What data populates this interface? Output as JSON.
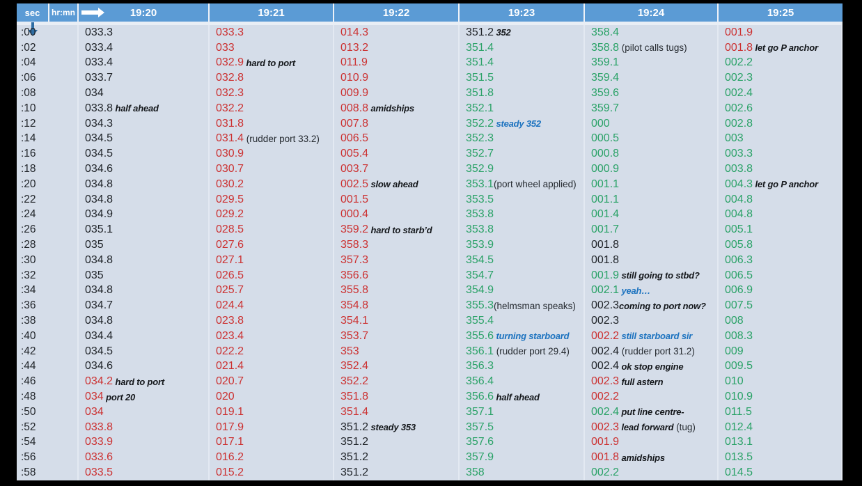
{
  "colors": {
    "header_bg": "#5b9bd5",
    "slide_bg": "#d5dde9",
    "black": "#1f2328",
    "red": "#cc3131",
    "green": "#2aa267",
    "blue": "#1b72bf",
    "arrow": "#2e6da4"
  },
  "header": {
    "sec_label": "sec",
    "hrmn_label": "hr:mn",
    "times": [
      "19:20",
      "19:21",
      "19:22",
      "19:23",
      "19:24",
      "19:25"
    ]
  },
  "rows": [
    ":00",
    ":02",
    ":04",
    ":06",
    ":08",
    ":10",
    ":12",
    ":14",
    ":16",
    ":18",
    ":20",
    ":22",
    ":24",
    ":26",
    ":28",
    ":30",
    ":32",
    ":34",
    ":36",
    ":38",
    ":40",
    ":42",
    ":44",
    ":46",
    ":48",
    ":50",
    ":52",
    ":54",
    ":56",
    ":58"
  ],
  "annotation_styles": {
    "bi": "black bold italic",
    "bl": "blue bold italic",
    "rg": "regular black"
  },
  "columns": [
    {
      "time": "19:20",
      "cells": [
        {
          "v": "033.3",
          "c": "k"
        },
        {
          "v": "033.4",
          "c": "k"
        },
        {
          "v": "033.4",
          "c": "k"
        },
        {
          "v": "033.7",
          "c": "k"
        },
        {
          "v": "034",
          "c": "k"
        },
        {
          "v": "033.8",
          "c": "k",
          "a": [
            {
              "t": " half ahead",
              "s": "bi"
            }
          ]
        },
        {
          "v": "034.3",
          "c": "k"
        },
        {
          "v": "034.5",
          "c": "k"
        },
        {
          "v": "034.5",
          "c": "k"
        },
        {
          "v": "034.6",
          "c": "k"
        },
        {
          "v": "034.8",
          "c": "k"
        },
        {
          "v": "034.8",
          "c": "k"
        },
        {
          "v": "034.9",
          "c": "k"
        },
        {
          "v": "035.1",
          "c": "k"
        },
        {
          "v": "035",
          "c": "k"
        },
        {
          "v": "034.8",
          "c": "k"
        },
        {
          "v": "035",
          "c": "k"
        },
        {
          "v": "034.8",
          "c": "k"
        },
        {
          "v": "034.7",
          "c": "k"
        },
        {
          "v": "034.8",
          "c": "k"
        },
        {
          "v": "034.4",
          "c": "k"
        },
        {
          "v": "034.5",
          "c": "k"
        },
        {
          "v": "034.6",
          "c": "k"
        },
        {
          "v": "034.2",
          "c": "r",
          "a": [
            {
              "t": " hard to port",
              "s": "bi"
            }
          ]
        },
        {
          "v": "034",
          "c": "r",
          "a": [
            {
              "t": " port 20",
              "s": "bi"
            }
          ]
        },
        {
          "v": "034",
          "c": "r"
        },
        {
          "v": "033.8",
          "c": "r"
        },
        {
          "v": "033.9",
          "c": "r"
        },
        {
          "v": "033.6",
          "c": "r"
        },
        {
          "v": "033.5",
          "c": "r"
        }
      ]
    },
    {
      "time": "19:21",
      "cells": [
        {
          "v": "033.3",
          "c": "r"
        },
        {
          "v": "033",
          "c": "r"
        },
        {
          "v": "032.9",
          "c": "r",
          "a": [
            {
              "t": " hard to port",
              "s": "bi"
            }
          ]
        },
        {
          "v": "032.8",
          "c": "r"
        },
        {
          "v": "032.3",
          "c": "r"
        },
        {
          "v": "032.2",
          "c": "r"
        },
        {
          "v": "031.8",
          "c": "r"
        },
        {
          "v": "031.4",
          "c": "r",
          "a": [
            {
              "t": " (rudder port 33.2)",
              "s": "rg"
            }
          ]
        },
        {
          "v": "030.9",
          "c": "r"
        },
        {
          "v": "030.7",
          "c": "r"
        },
        {
          "v": "030.2",
          "c": "r"
        },
        {
          "v": "029.5",
          "c": "r"
        },
        {
          "v": "029.2",
          "c": "r"
        },
        {
          "v": "028.5",
          "c": "r"
        },
        {
          "v": "027.6",
          "c": "r"
        },
        {
          "v": "027.1",
          "c": "r"
        },
        {
          "v": "026.5",
          "c": "r"
        },
        {
          "v": "025.7",
          "c": "r"
        },
        {
          "v": "024.4",
          "c": "r"
        },
        {
          "v": "023.8",
          "c": "r"
        },
        {
          "v": "023.4",
          "c": "r"
        },
        {
          "v": "022.2",
          "c": "r"
        },
        {
          "v": "021.4",
          "c": "r"
        },
        {
          "v": "020.7",
          "c": "r"
        },
        {
          "v": "020",
          "c": "r"
        },
        {
          "v": "019.1",
          "c": "r"
        },
        {
          "v": "017.9",
          "c": "r"
        },
        {
          "v": "017.1",
          "c": "r"
        },
        {
          "v": "016.2",
          "c": "r"
        },
        {
          "v": "015.2",
          "c": "r"
        }
      ]
    },
    {
      "time": "19:22",
      "cells": [
        {
          "v": "014.3",
          "c": "r"
        },
        {
          "v": "013.2",
          "c": "r"
        },
        {
          "v": "011.9",
          "c": "r"
        },
        {
          "v": "010.9",
          "c": "r"
        },
        {
          "v": "009.9",
          "c": "r"
        },
        {
          "v": "008.8",
          "c": "r",
          "a": [
            {
              "t": " amidships",
              "s": "bi"
            }
          ]
        },
        {
          "v": "007.8",
          "c": "r"
        },
        {
          "v": "006.5",
          "c": "r"
        },
        {
          "v": "005.4",
          "c": "r"
        },
        {
          "v": "003.7",
          "c": "r"
        },
        {
          "v": "002.5",
          "c": "r",
          "a": [
            {
              "t": " slow ahead",
              "s": "bi"
            }
          ]
        },
        {
          "v": "001.5",
          "c": "r"
        },
        {
          "v": "000.4",
          "c": "r"
        },
        {
          "v": "359.2",
          "c": "r",
          "a": [
            {
              "t": " hard to starb’d",
              "s": "bi"
            }
          ]
        },
        {
          "v": "358.3",
          "c": "r"
        },
        {
          "v": "357.3",
          "c": "r"
        },
        {
          "v": "356.6",
          "c": "r"
        },
        {
          "v": "355.8",
          "c": "r"
        },
        {
          "v": "354.8",
          "c": "r"
        },
        {
          "v": "354.1",
          "c": "r"
        },
        {
          "v": "353.7",
          "c": "r"
        },
        {
          "v": "353",
          "c": "r"
        },
        {
          "v": "352.4",
          "c": "r"
        },
        {
          "v": "352.2",
          "c": "r"
        },
        {
          "v": "351.8",
          "c": "r"
        },
        {
          "v": "351.4",
          "c": "r"
        },
        {
          "v": "351.2",
          "c": "k",
          "a": [
            {
              "t": " steady 353",
              "s": "bi"
            }
          ]
        },
        {
          "v": "351.2",
          "c": "k"
        },
        {
          "v": "351.2",
          "c": "k"
        },
        {
          "v": "351.2",
          "c": "k"
        }
      ]
    },
    {
      "time": "19:23",
      "cells": [
        {
          "v": "351.2",
          "c": "k",
          "a": [
            {
              "t": " 352",
              "s": "bi"
            }
          ]
        },
        {
          "v": "351.4",
          "c": "g"
        },
        {
          "v": "351.4",
          "c": "g"
        },
        {
          "v": "351.5",
          "c": "g"
        },
        {
          "v": "351.8",
          "c": "g"
        },
        {
          "v": "352.1",
          "c": "g"
        },
        {
          "v": "352.2",
          "c": "g",
          "a": [
            {
              "t": " steady 352",
              "s": "bl"
            }
          ]
        },
        {
          "v": "352.3",
          "c": "g"
        },
        {
          "v": "352.7",
          "c": "g"
        },
        {
          "v": "352.9",
          "c": "g"
        },
        {
          "v": "353.1",
          "c": "g",
          "a": [
            {
              "t": "(port wheel applied)",
              "s": "rg"
            }
          ]
        },
        {
          "v": "353.5",
          "c": "g"
        },
        {
          "v": "353.8",
          "c": "g"
        },
        {
          "v": "353.8",
          "c": "g"
        },
        {
          "v": "353.9",
          "c": "g"
        },
        {
          "v": "354.5",
          "c": "g"
        },
        {
          "v": "354.7",
          "c": "g"
        },
        {
          "v": "354.9",
          "c": "g"
        },
        {
          "v": "355.3",
          "c": "g",
          "a": [
            {
              "t": "(helmsman speaks)",
              "s": "rg"
            }
          ]
        },
        {
          "v": "355.4",
          "c": "g"
        },
        {
          "v": "355.6",
          "c": "g",
          "a": [
            {
              "t": " turning starboard",
              "s": "bl"
            }
          ]
        },
        {
          "v": "356.1",
          "c": "g",
          "a": [
            {
              "t": " (rudder port 29.4)",
              "s": "rg"
            }
          ]
        },
        {
          "v": "356.3",
          "c": "g"
        },
        {
          "v": "356.4",
          "c": "g"
        },
        {
          "v": "356.6",
          "c": "g",
          "a": [
            {
              "t": " half ahead",
              "s": "bi"
            }
          ]
        },
        {
          "v": "357.1",
          "c": "g"
        },
        {
          "v": "357.5",
          "c": "g"
        },
        {
          "v": "357.6",
          "c": "g"
        },
        {
          "v": "357.9",
          "c": "g"
        },
        {
          "v": "358",
          "c": "g"
        }
      ]
    },
    {
      "time": "19:24",
      "cells": [
        {
          "v": "358.4",
          "c": "g"
        },
        {
          "v": "358.8",
          "c": "g",
          "a": [
            {
              "t": " (pilot calls tugs)",
              "s": "rg"
            }
          ]
        },
        {
          "v": "359.1",
          "c": "g"
        },
        {
          "v": "359.4",
          "c": "g"
        },
        {
          "v": "359.6",
          "c": "g"
        },
        {
          "v": "359.7",
          "c": "g"
        },
        {
          "v": "000",
          "c": "g"
        },
        {
          "v": "000.5",
          "c": "g"
        },
        {
          "v": "000.8",
          "c": "g"
        },
        {
          "v": "000.9",
          "c": "g"
        },
        {
          "v": "001.1",
          "c": "g"
        },
        {
          "v": "001.1",
          "c": "g"
        },
        {
          "v": "001.4",
          "c": "g"
        },
        {
          "v": "001.7",
          "c": "g"
        },
        {
          "v": "001.8",
          "c": "k"
        },
        {
          "v": "001.8",
          "c": "k"
        },
        {
          "v": "001.9",
          "c": "g",
          "a": [
            {
              "t": " still going to stbd?",
              "s": "bi"
            }
          ]
        },
        {
          "v": "002.1",
          "c": "g",
          "a": [
            {
              "t": " yeah…",
              "s": "bl"
            }
          ]
        },
        {
          "v": "002.3",
          "c": "k",
          "a": [
            {
              "t": "coming to port now?",
              "s": "bi"
            }
          ]
        },
        {
          "v": "002.3",
          "c": "k"
        },
        {
          "v": "002.2",
          "c": "r",
          "a": [
            {
              "t": " still starboard sir",
              "s": "bl"
            }
          ]
        },
        {
          "v": "002.4",
          "c": "k",
          "a": [
            {
              "t": " (rudder port 31.2)",
              "s": "rg"
            }
          ]
        },
        {
          "v": "002.4",
          "c": "k",
          "a": [
            {
              "t": " ok stop engine",
              "s": "bi"
            }
          ]
        },
        {
          "v": "002.3",
          "c": "r",
          "a": [
            {
              "t": " full astern",
              "s": "bi"
            }
          ]
        },
        {
          "v": "002.2",
          "c": "r"
        },
        {
          "v": "002.4",
          "c": "g",
          "a": [
            {
              "t": " put line centre-",
              "s": "bi"
            }
          ]
        },
        {
          "v": "002.3",
          "c": "r",
          "a": [
            {
              "t": " lead forward",
              "s": "bi"
            },
            {
              "t": " (tug)",
              "s": "rg"
            }
          ]
        },
        {
          "v": "001.9",
          "c": "r"
        },
        {
          "v": "001.8",
          "c": "r",
          "a": [
            {
              "t": " amidships",
              "s": "bi"
            }
          ]
        },
        {
          "v": "002.2",
          "c": "g"
        }
      ]
    },
    {
      "time": "19:25",
      "cells": [
        {
          "v": "001.9",
          "c": "r"
        },
        {
          "v": "001.8",
          "c": "r",
          "a": [
            {
              "t": " let go P anchor",
              "s": "bi"
            }
          ]
        },
        {
          "v": "002.2",
          "c": "g"
        },
        {
          "v": "002.3",
          "c": "g"
        },
        {
          "v": "002.4",
          "c": "g"
        },
        {
          "v": "002.6",
          "c": "g"
        },
        {
          "v": "002.8",
          "c": "g"
        },
        {
          "v": "003",
          "c": "g"
        },
        {
          "v": "003.3",
          "c": "g"
        },
        {
          "v": "003.8",
          "c": "g"
        },
        {
          "v": "004.3",
          "c": "g",
          "a": [
            {
              "t": " let go P anchor",
              "s": "bi"
            }
          ]
        },
        {
          "v": "004.8",
          "c": "g"
        },
        {
          "v": "004.8",
          "c": "g"
        },
        {
          "v": "005.1",
          "c": "g"
        },
        {
          "v": "005.8",
          "c": "g"
        },
        {
          "v": "006.3",
          "c": "g"
        },
        {
          "v": "006.5",
          "c": "g"
        },
        {
          "v": "006.9",
          "c": "g"
        },
        {
          "v": "007.5",
          "c": "g"
        },
        {
          "v": "008",
          "c": "g"
        },
        {
          "v": "008.3",
          "c": "g"
        },
        {
          "v": "009",
          "c": "g"
        },
        {
          "v": "009.5",
          "c": "g"
        },
        {
          "v": "010",
          "c": "g"
        },
        {
          "v": "010.9",
          "c": "g"
        },
        {
          "v": "011.5",
          "c": "g"
        },
        {
          "v": "012.4",
          "c": "g"
        },
        {
          "v": "013.1",
          "c": "g"
        },
        {
          "v": "013.5",
          "c": "g"
        },
        {
          "v": "014.5",
          "c": "g"
        }
      ]
    }
  ]
}
